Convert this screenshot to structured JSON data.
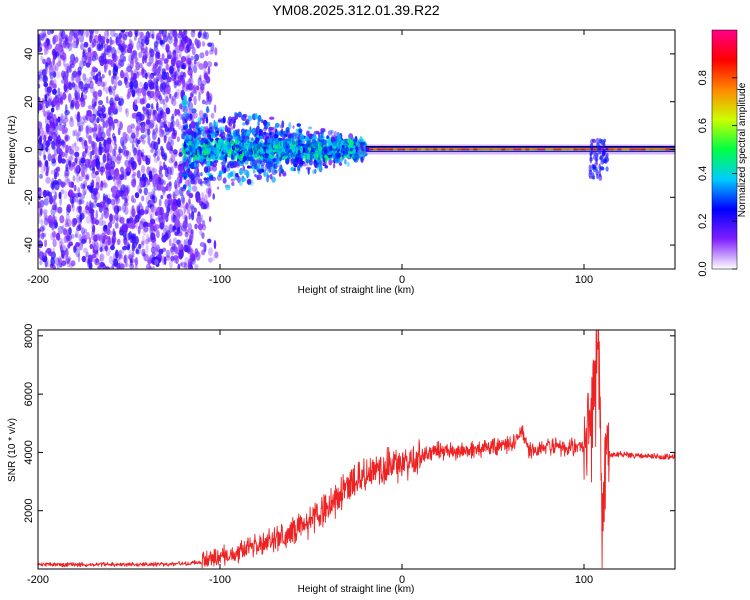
{
  "title": "YM08.2025.312.01.39.R22",
  "colors": {
    "snr_line": "#ee2222",
    "frame": "#000000"
  },
  "chart_data": [
    {
      "type": "heatmap",
      "name": "spectrogram",
      "xlabel": "Height of straight line (km)",
      "ylabel": "Frequency (Hz)",
      "xlim": [
        -200,
        150
      ],
      "ylim": [
        -50,
        50
      ],
      "xticks": [
        -200,
        -100,
        0,
        100
      ],
      "xtick_labels": [
        "-200",
        "-100",
        "0",
        "100"
      ],
      "yticks": [
        -40,
        -20,
        0,
        20,
        40
      ],
      "ytick_labels": [
        "-40",
        "-20",
        "0",
        "20",
        "40"
      ],
      "colorbar": {
        "label": "Normalized spectral amplitude",
        "range": [
          0,
          1
        ],
        "ticks": [
          0,
          0.2,
          0.4,
          0.6,
          0.8
        ],
        "tick_labels": [
          "0.0",
          "0.2",
          "0.4",
          "0.6",
          "0.8"
        ],
        "colormap": [
          "#ffffff",
          "#8020ff",
          "#0000ff",
          "#00ccff",
          "#00ff44",
          "#ccff00",
          "#ff8800",
          "#ff0000",
          "#ff0088"
        ]
      },
      "description": "Broadband noise for x < -110 km; energy concentrates near 0 Hz from about -100 km onward, forming a narrow high-amplitude band around 0 Hz for x > -20 km, with a disturbance near x = 105 to 110 km."
    },
    {
      "type": "line",
      "name": "snr",
      "xlabel": "Height of straight line (km)",
      "ylabel": "SNR (10 * v/v)",
      "xlim": [
        -200,
        150
      ],
      "ylim": [
        0,
        8200
      ],
      "xticks": [
        -200,
        -100,
        0,
        100
      ],
      "xtick_labels": [
        "-200",
        "-100",
        "0",
        "100"
      ],
      "yticks": [
        2000,
        4000,
        6000,
        8000
      ],
      "ytick_labels": [
        "2000",
        "4000",
        "6000",
        "8000"
      ],
      "series": [
        {
          "name": "SNR",
          "x": [
            -200,
            -150,
            -120,
            -110,
            -100,
            -90,
            -80,
            -70,
            -60,
            -50,
            -40,
            -30,
            -20,
            -10,
            0,
            10,
            20,
            30,
            40,
            50,
            60,
            66,
            70,
            80,
            90,
            100,
            104,
            108,
            110,
            112,
            116,
            120,
            130,
            140,
            150
          ],
          "y": [
            150,
            150,
            180,
            250,
            420,
            600,
            800,
            1000,
            1300,
            1650,
            2200,
            2800,
            3200,
            3400,
            3650,
            3850,
            4050,
            4000,
            4100,
            4200,
            4250,
            4700,
            4050,
            4150,
            4200,
            4150,
            5500,
            7800,
            1200,
            4000,
            3900,
            3950,
            3900,
            3850,
            3850
          ]
        }
      ]
    }
  ]
}
